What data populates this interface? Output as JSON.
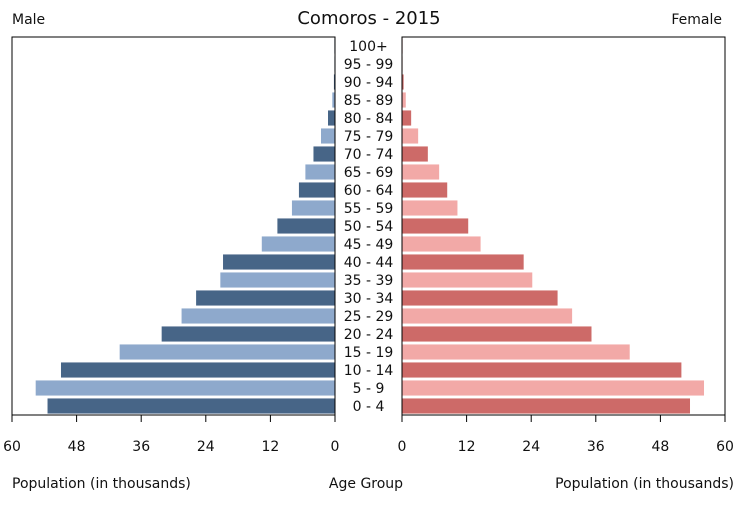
{
  "chart_data": {
    "type": "bar",
    "title": "Comoros - 2015",
    "left_label": "Male",
    "right_label": "Female",
    "xlabel_left": "Population (in thousands)",
    "xlabel_center": "Age Group",
    "xlabel_right": "Population (in thousands)",
    "xlim": [
      0,
      60
    ],
    "xticks": [
      0,
      12,
      24,
      36,
      48,
      60
    ],
    "grid": false,
    "categories": [
      "100+",
      "95 - 99",
      "90 - 94",
      "85 - 89",
      "80 - 84",
      "75 - 79",
      "70 - 74",
      "65 - 69",
      "60 - 64",
      "55 - 59",
      "50 - 54",
      "45 - 49",
      "40 - 44",
      "35 - 39",
      "30 - 34",
      "25 - 29",
      "20 - 24",
      "15 - 19",
      "10 - 14",
      "5 - 9",
      "0 - 4"
    ],
    "series": [
      {
        "name": "Male",
        "values": [
          0.05,
          0.1,
          0.2,
          0.5,
          1.3,
          2.6,
          4.0,
          5.5,
          6.7,
          8.0,
          10.7,
          13.6,
          20.8,
          21.3,
          25.8,
          28.5,
          32.2,
          40.0,
          50.9,
          55.6,
          53.4
        ]
      },
      {
        "name": "Female",
        "values": [
          0.05,
          0.1,
          0.3,
          0.7,
          1.7,
          3.0,
          4.8,
          6.9,
          8.4,
          10.3,
          12.3,
          14.6,
          22.6,
          24.2,
          28.9,
          31.6,
          35.2,
          42.3,
          51.9,
          56.1,
          53.5
        ]
      }
    ],
    "colors": {
      "male_dark": "#476587",
      "male_light": "#8ea9cc",
      "female_dark": "#cd6a68",
      "female_light": "#f2a9a7",
      "axis": "#000000"
    }
  }
}
